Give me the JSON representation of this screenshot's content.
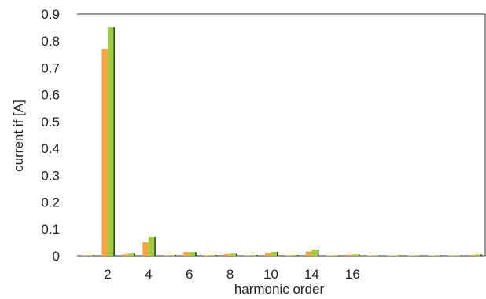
{
  "chart_data": {
    "type": "bar",
    "xlabel": "harmonic order",
    "ylabel": "current if [A]",
    "ylim": [
      0,
      0.9
    ],
    "y_ticks": [
      "0",
      "0.1",
      "0.2",
      "0.3",
      "0.4",
      "0.5",
      "0.6",
      "0.7",
      "0.8",
      "0.9"
    ],
    "categories": [
      "",
      "2",
      "",
      "4",
      "",
      "6",
      "",
      "8",
      "",
      "10",
      "",
      "14",
      "",
      "16",
      "",
      "",
      "",
      "",
      "",
      ""
    ],
    "series": [
      {
        "color": "#f4a442",
        "values": [
          0.002,
          0.77,
          0.005,
          0.05,
          0.002,
          0.014,
          0.002,
          0.006,
          0.002,
          0.012,
          0.002,
          0.016,
          0.001,
          0.004,
          0.001,
          0.001,
          0.001,
          0.001,
          0.001,
          0.003
        ]
      },
      {
        "color": "#9fcd3c",
        "values": [
          0.003,
          0.85,
          0.008,
          0.07,
          0.003,
          0.014,
          0.003,
          0.008,
          0.003,
          0.015,
          0.003,
          0.023,
          0.002,
          0.005,
          0.002,
          0.002,
          0.002,
          0.002,
          0.002,
          0.005
        ]
      }
    ],
    "grid": false,
    "frame": "top-right"
  }
}
